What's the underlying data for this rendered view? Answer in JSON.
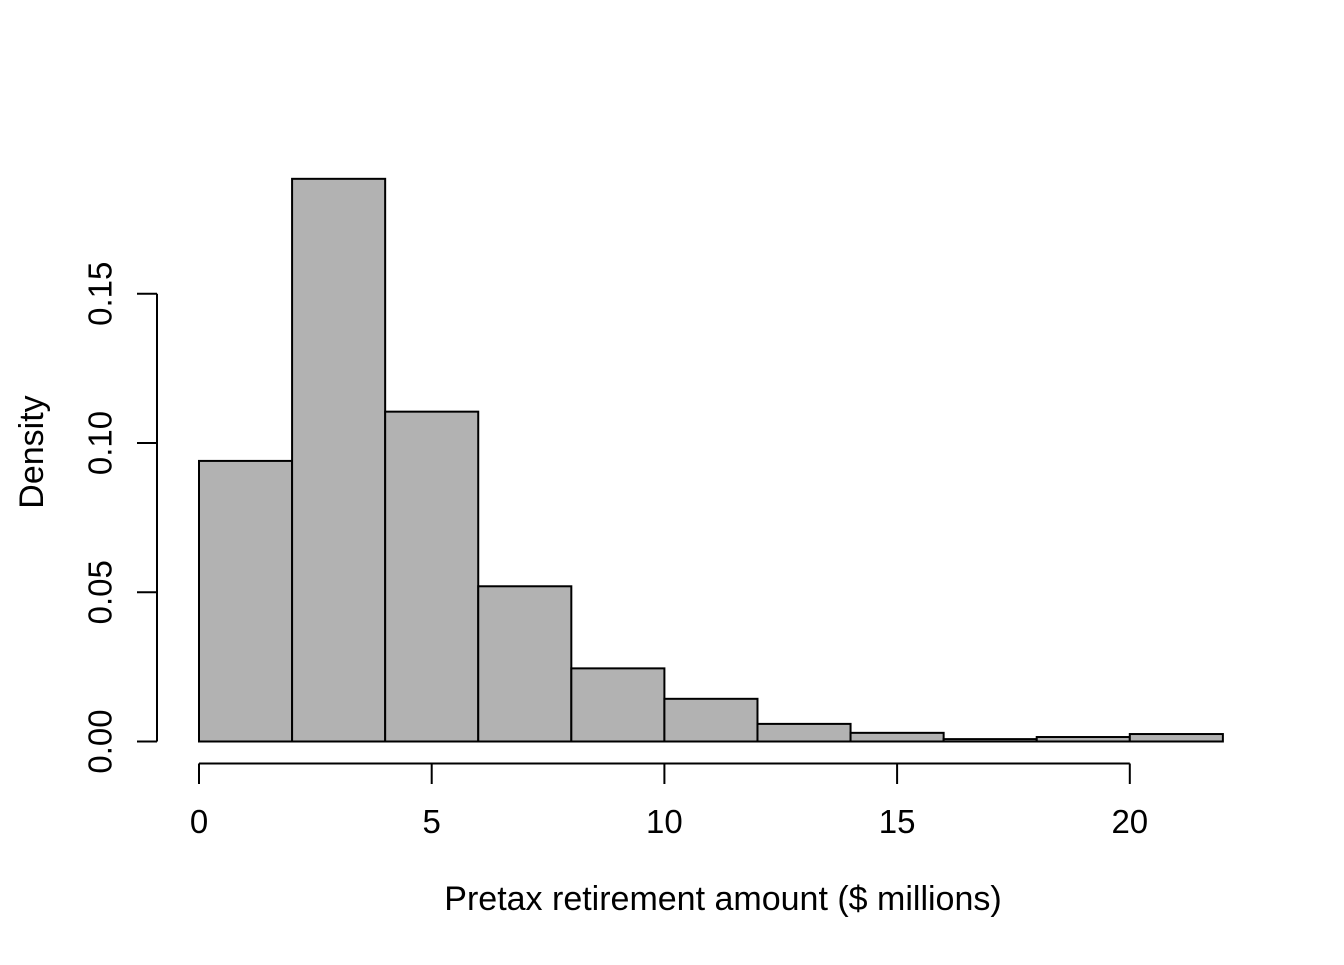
{
  "figure": {
    "background": "#ffffff"
  },
  "chart_data": {
    "type": "bar",
    "subtype": "histogram",
    "title": "",
    "xlabel": "Pretax retirement amount ($ millions)",
    "ylabel": "Density",
    "xlim": [
      0,
      22
    ],
    "ylim": [
      0,
      0.19
    ],
    "grid": false,
    "legend": null,
    "bin_width": 2,
    "x_ticks": [
      {
        "value": 0,
        "label": "0"
      },
      {
        "value": 5,
        "label": "5"
      },
      {
        "value": 10,
        "label": "10"
      },
      {
        "value": 15,
        "label": "15"
      },
      {
        "value": 20,
        "label": "20"
      }
    ],
    "y_ticks": [
      {
        "value": 0.0,
        "label": "0.00"
      },
      {
        "value": 0.05,
        "label": "0.05"
      },
      {
        "value": 0.1,
        "label": "0.10"
      },
      {
        "value": 0.15,
        "label": "0.15"
      }
    ],
    "bins": [
      {
        "start": 0,
        "end": 2,
        "density": 0.094
      },
      {
        "start": 2,
        "end": 4,
        "density": 0.1885
      },
      {
        "start": 4,
        "end": 6,
        "density": 0.1105
      },
      {
        "start": 6,
        "end": 8,
        "density": 0.052
      },
      {
        "start": 8,
        "end": 10,
        "density": 0.0245
      },
      {
        "start": 10,
        "end": 12,
        "density": 0.0143
      },
      {
        "start": 12,
        "end": 14,
        "density": 0.0059
      },
      {
        "start": 14,
        "end": 16,
        "density": 0.0029
      },
      {
        "start": 16,
        "end": 18,
        "density": 0.0008
      },
      {
        "start": 18,
        "end": 20,
        "density": 0.0015
      },
      {
        "start": 20,
        "end": 22,
        "density": 0.0025
      }
    ],
    "colors": {
      "bar_fill": "#b2b2b2",
      "bar_stroke": "#000000",
      "axis": "#000000",
      "text": "#000000",
      "background": "#ffffff"
    }
  }
}
